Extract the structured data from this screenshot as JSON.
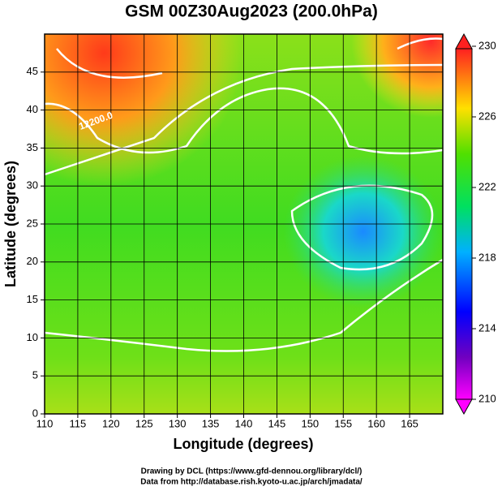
{
  "chart_data": {
    "type": "map",
    "title": "GSM 00Z30Aug2023 (200.0hPa)",
    "xlabel": "Longitude (degrees)",
    "ylabel": "Latitude  (degrees)",
    "xlim": [
      110,
      170
    ],
    "ylim": [
      0,
      50
    ],
    "xticks": [
      110,
      115,
      120,
      125,
      130,
      135,
      140,
      145,
      150,
      155,
      160,
      165
    ],
    "yticks": [
      0,
      5,
      10,
      15,
      20,
      25,
      30,
      35,
      40,
      45
    ],
    "grid": true,
    "colorbar": {
      "lim": [
        210,
        230
      ],
      "ticks": [
        210,
        214,
        218,
        222,
        226,
        230
      ]
    },
    "contour_labels": [
      "12200.0"
    ],
    "credits": [
      "Drawing by DCL (https://www.gfd-dennou.org/library/dcl/)",
      "Data from http://database.rish.kyoto-u.ac.jp/arch/jmadata/"
    ]
  }
}
